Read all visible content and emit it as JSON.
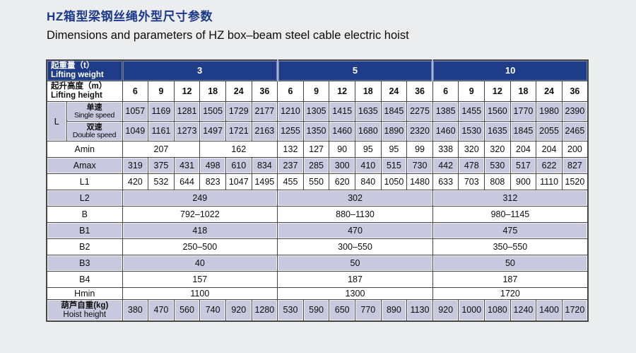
{
  "header": {
    "title_zh": "HZ箱型梁钢丝绳外型尺寸参数",
    "title_en": "Dimensions and parameters of HZ box–beam steel cable electric hoist"
  },
  "colors": {
    "header_blue": "#1e3c87",
    "row_shade": "#c8c9df",
    "title_blue": "#1c3a8c",
    "page_bg": "#ecedee",
    "grid": "#454545"
  },
  "table": {
    "weight_header": {
      "zh": "起重量（t）",
      "en": "Lifting weight"
    },
    "height_header": {
      "zh": "起升高度（m）",
      "en": "Lifting height"
    },
    "groups": [
      "3",
      "5",
      "10"
    ],
    "heights": [
      "6",
      "9",
      "12",
      "18",
      "24",
      "36"
    ],
    "l_block": {
      "label": "L",
      "rows": [
        {
          "zh": "单速",
          "en": "Single speed",
          "values": [
            1057,
            1169,
            1281,
            1505,
            1729,
            2177,
            1210,
            1305,
            1415,
            1635,
            1845,
            2275,
            1385,
            1455,
            1560,
            1770,
            1980,
            2390
          ]
        },
        {
          "zh": "双速",
          "en": "Double speed",
          "values": [
            1049,
            1161,
            1273,
            1497,
            1721,
            2163,
            1255,
            1350,
            1460,
            1680,
            1890,
            2320,
            1460,
            1530,
            1635,
            1845,
            2055,
            2465
          ]
        }
      ]
    },
    "param_rows": [
      {
        "label": "Amin",
        "shade": false,
        "small": false,
        "cells": [
          [
            "207",
            3
          ],
          [
            "162",
            3
          ],
          "132",
          "127",
          "90",
          "95",
          "95",
          "99",
          "338",
          "320",
          "320",
          "204",
          "204",
          "200"
        ]
      },
      {
        "label": "Amax",
        "shade": true,
        "small": false,
        "cells": [
          "319",
          "375",
          "431",
          "498",
          "610",
          "834",
          "237",
          "285",
          "300",
          "410",
          "515",
          "730",
          "442",
          "478",
          "530",
          "517",
          "622",
          "827"
        ]
      },
      {
        "label": "L1",
        "shade": false,
        "small": false,
        "cells": [
          "420",
          "532",
          "644",
          "823",
          "1047",
          "1495",
          "455",
          "550",
          "620",
          "840",
          "1050",
          "1480",
          "633",
          "703",
          "808",
          "900",
          "1110",
          "1520"
        ]
      },
      {
        "label": "L2",
        "shade": true,
        "small": false,
        "cells": [
          [
            "249",
            6
          ],
          [
            "302",
            6
          ],
          [
            "312",
            6
          ]
        ]
      },
      {
        "label": "B",
        "shade": false,
        "small": false,
        "cells": [
          [
            "792–1022",
            6
          ],
          [
            "880–1130",
            6
          ],
          [
            "980–1145",
            6
          ]
        ]
      },
      {
        "label": "B1",
        "shade": true,
        "small": false,
        "cells": [
          [
            "418",
            6
          ],
          [
            "470",
            6
          ],
          [
            "475",
            6
          ]
        ]
      },
      {
        "label": "B2",
        "shade": false,
        "small": false,
        "cells": [
          [
            "250–500",
            6
          ],
          [
            "300–550",
            6
          ],
          [
            "350–550",
            6
          ]
        ]
      },
      {
        "label": "B3",
        "shade": true,
        "small": false,
        "cells": [
          [
            "40",
            6
          ],
          [
            "50",
            6
          ],
          [
            "50",
            6
          ]
        ]
      },
      {
        "label": "B4",
        "shade": false,
        "small": false,
        "cells": [
          [
            "157",
            6
          ],
          [
            "187",
            6
          ],
          [
            "187",
            6
          ]
        ]
      },
      {
        "label": "Hmin",
        "shade": false,
        "small": true,
        "cells": [
          [
            "1100",
            6
          ],
          [
            "1300",
            6
          ],
          [
            "1720",
            6
          ]
        ]
      }
    ],
    "weight_row": {
      "zh": "葫芦自重(kg)",
      "en": "Hoist height",
      "values": [
        380,
        470,
        560,
        740,
        920,
        1280,
        530,
        590,
        650,
        770,
        890,
        1130,
        920,
        1000,
        1080,
        1240,
        1400,
        1720
      ]
    }
  }
}
